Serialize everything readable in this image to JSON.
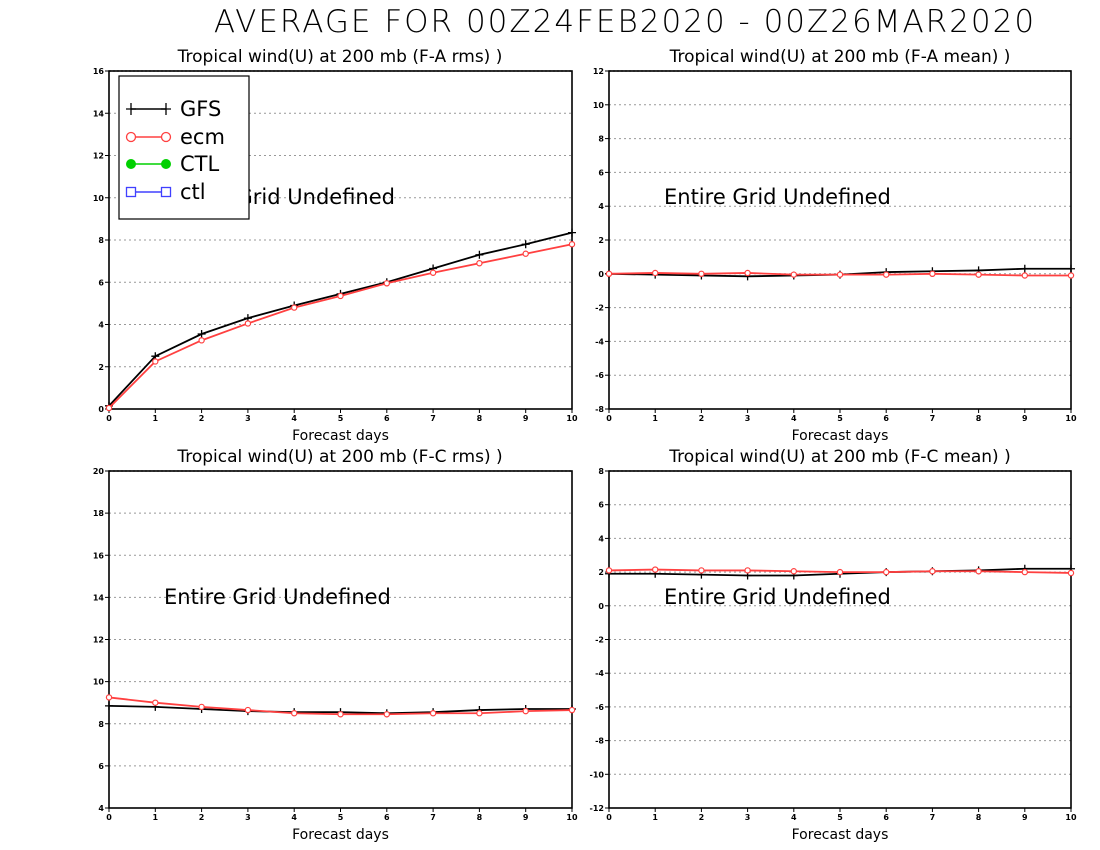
{
  "title": "AVERAGE FOR 00Z24FEB2020 - 00Z26MAR2020",
  "colors": {
    "GFS": "#000000",
    "ecm": "#ff4040",
    "CTL": "#00d000",
    "ctl": "#4040ff",
    "grid": "#999999"
  },
  "chart_data": [
    {
      "type": "line",
      "title": "Tropical wind(U) at 200 mb (F-A rms) )",
      "xlabel": "Forecast days",
      "ylabel": "",
      "x": [
        0,
        1,
        2,
        3,
        4,
        5,
        6,
        7,
        8,
        9,
        10
      ],
      "xlim": [
        0,
        10
      ],
      "ylim": [
        0,
        16
      ],
      "yticks": [
        0,
        2,
        4,
        6,
        8,
        10,
        12,
        14,
        16
      ],
      "grid": true,
      "annotation": "Entire Grid Undefined",
      "legend": {
        "placement": "top-left",
        "entries": [
          "GFS",
          "ecm",
          "CTL",
          "ctl"
        ]
      },
      "series": [
        {
          "name": "GFS",
          "values": [
            0.15,
            2.5,
            3.55,
            4.3,
            4.9,
            5.45,
            6.0,
            6.65,
            7.3,
            7.8,
            8.35
          ]
        },
        {
          "name": "ecm",
          "values": [
            0.05,
            2.25,
            3.25,
            4.05,
            4.8,
            5.35,
            5.95,
            6.45,
            6.9,
            7.35,
            7.8
          ]
        }
      ]
    },
    {
      "type": "line",
      "title": "Tropical wind(U) at 200 mb (F-A mean) )",
      "xlabel": "Forecast days",
      "ylabel": "",
      "x": [
        0,
        1,
        2,
        3,
        4,
        5,
        6,
        7,
        8,
        9,
        10
      ],
      "xlim": [
        0,
        10
      ],
      "ylim": [
        -8,
        12
      ],
      "yticks": [
        -8,
        -6,
        -4,
        -2,
        0,
        2,
        4,
        6,
        8,
        10,
        12
      ],
      "grid": true,
      "annotation": "Entire Grid Undefined",
      "series": [
        {
          "name": "GFS",
          "values": [
            0.0,
            -0.05,
            -0.1,
            -0.15,
            -0.1,
            -0.05,
            0.1,
            0.15,
            0.2,
            0.3,
            0.3
          ]
        },
        {
          "name": "ecm",
          "values": [
            0.0,
            0.05,
            0.0,
            0.05,
            -0.05,
            -0.05,
            -0.05,
            0.0,
            -0.05,
            -0.1,
            -0.1
          ]
        }
      ]
    },
    {
      "type": "line",
      "title": "Tropical wind(U) at 200 mb (F-C rms) )",
      "xlabel": "Forecast days",
      "ylabel": "",
      "x": [
        0,
        1,
        2,
        3,
        4,
        5,
        6,
        7,
        8,
        9,
        10
      ],
      "xlim": [
        0,
        10
      ],
      "ylim": [
        4,
        20
      ],
      "yticks": [
        4,
        6,
        8,
        10,
        12,
        14,
        16,
        18,
        20
      ],
      "grid": true,
      "annotation": "Entire Grid Undefined",
      "series": [
        {
          "name": "GFS",
          "values": [
            8.85,
            8.8,
            8.7,
            8.6,
            8.55,
            8.55,
            8.5,
            8.55,
            8.65,
            8.7,
            8.7
          ]
        },
        {
          "name": "ecm",
          "values": [
            9.25,
            9.0,
            8.8,
            8.65,
            8.5,
            8.45,
            8.45,
            8.5,
            8.5,
            8.6,
            8.65
          ]
        }
      ]
    },
    {
      "type": "line",
      "title": "Tropical wind(U) at 200 mb (F-C mean) )",
      "xlabel": "Forecast days",
      "ylabel": "",
      "x": [
        0,
        1,
        2,
        3,
        4,
        5,
        6,
        7,
        8,
        9,
        10
      ],
      "xlim": [
        0,
        10
      ],
      "ylim": [
        -12,
        8
      ],
      "yticks": [
        -12,
        -10,
        -8,
        -6,
        -4,
        -2,
        0,
        2,
        4,
        6,
        8
      ],
      "grid": true,
      "annotation": "Entire Grid Undefined",
      "series": [
        {
          "name": "GFS",
          "values": [
            1.9,
            1.9,
            1.85,
            1.8,
            1.8,
            1.9,
            2.0,
            2.05,
            2.1,
            2.2,
            2.2
          ]
        },
        {
          "name": "ecm",
          "values": [
            2.1,
            2.15,
            2.1,
            2.1,
            2.05,
            2.0,
            2.0,
            2.05,
            2.05,
            2.0,
            1.95
          ]
        }
      ]
    }
  ]
}
